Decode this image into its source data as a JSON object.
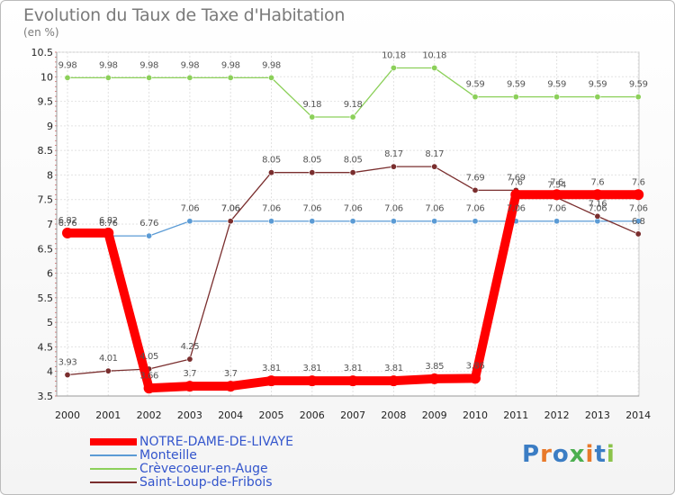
{
  "chart_data": {
    "type": "line",
    "title": "Evolution du Taux de Taxe d'Habitation",
    "subtitle": "(en %)",
    "x": [
      "2000",
      "2001",
      "2002",
      "2003",
      "2004",
      "2005",
      "2006",
      "2007",
      "2008",
      "2009",
      "2010",
      "2011",
      "2012",
      "2013",
      "2014"
    ],
    "ylim": [
      3.5,
      10.5
    ],
    "yticks": [
      "3.5",
      "4",
      "4.5",
      "5",
      "5.5",
      "6",
      "6.5",
      "7",
      "7.5",
      "8",
      "8.5",
      "9",
      "9.5",
      "10",
      "10.5"
    ],
    "grid": true,
    "legend_position": "bottom-left",
    "series": [
      {
        "name": "NOTRE-DAME-DE-LIVAYE",
        "color": "#ff0000",
        "values": [
          6.82,
          6.82,
          3.66,
          3.7,
          3.7,
          3.81,
          3.81,
          3.81,
          3.81,
          3.85,
          3.86,
          7.6,
          7.6,
          7.6,
          7.6
        ],
        "labels": [
          "6.82",
          "6.82",
          "3.66",
          "3.7",
          "3.7",
          "3.81",
          "3.81",
          "3.81",
          "3.81",
          "3.85",
          "3.86",
          "7.6",
          "7.6",
          "7.6",
          "7.6"
        ]
      },
      {
        "name": "Monteille",
        "color": "#5b9bd5",
        "values": [
          6.76,
          6.76,
          6.76,
          7.06,
          7.06,
          7.06,
          7.06,
          7.06,
          7.06,
          7.06,
          7.06,
          7.06,
          7.06,
          7.06,
          7.06
        ],
        "labels": [
          "6.76",
          "6.76",
          "6.76",
          "7.06",
          "7.06",
          "7.06",
          "7.06",
          "7.06",
          "7.06",
          "7.06",
          "7.06",
          "7.06",
          "7.06",
          "7.06",
          "7.06"
        ]
      },
      {
        "name": "Crèvecoeur-en-Auge",
        "color": "#8cd05a",
        "values": [
          9.98,
          9.98,
          9.98,
          9.98,
          9.98,
          9.98,
          9.18,
          9.18,
          10.18,
          10.18,
          9.59,
          9.59,
          9.59,
          9.59,
          9.59
        ],
        "labels": [
          "9.98",
          "9.98",
          "9.98",
          "9.98",
          "9.98",
          "9.98",
          "9.18",
          "9.18",
          "10.18",
          "10.18",
          "9.59",
          "9.59",
          "9.59",
          "9.59",
          "9.59"
        ]
      },
      {
        "name": "Saint-Loup-de-Fribois",
        "color": "#7a2e2e",
        "values": [
          3.93,
          4.01,
          4.05,
          4.25,
          7.06,
          8.05,
          8.05,
          8.05,
          8.17,
          8.17,
          7.69,
          7.69,
          7.54,
          7.16,
          6.8
        ],
        "labels": [
          "3.93",
          "4.01",
          "4.05",
          "4.25",
          "7.06",
          "8.05",
          "8.05",
          "8.05",
          "8.17",
          "8.17",
          "7.69",
          "7.69",
          "7.54",
          "7.16",
          "6.8"
        ]
      }
    ]
  },
  "logo": {
    "text": "Proxiti",
    "letters": [
      "P",
      "r",
      "o",
      "x",
      "i",
      "t",
      "i"
    ],
    "colors": [
      "#3b7dc4",
      "#e8792a",
      "#3b7dc4",
      "#4caf50",
      "#e8792a",
      "#3b7dc4",
      "#8bc34a"
    ]
  }
}
